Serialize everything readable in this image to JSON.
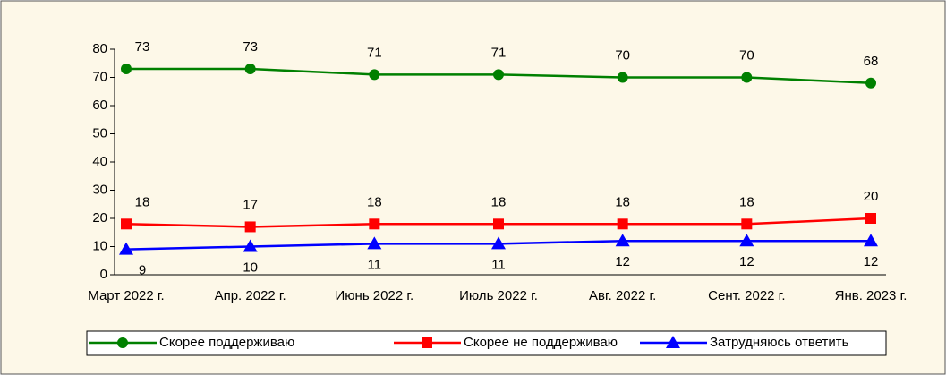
{
  "chart_data": {
    "type": "line",
    "categories": [
      "Март 2022 г.",
      "Апр. 2022 г.",
      "Июнь 2022 г.",
      "Июль 2022 г.",
      "Авг. 2022 г.",
      "Сент. 2022 г.",
      "Янв. 2023 г."
    ],
    "series": [
      {
        "name": "Скорее поддерживаю",
        "color": "#008000",
        "marker": "circle",
        "values": [
          73,
          73,
          71,
          71,
          70,
          70,
          68
        ]
      },
      {
        "name": "Скорее не поддерживаю",
        "color": "#ff0000",
        "marker": "square",
        "values": [
          18,
          17,
          18,
          18,
          18,
          18,
          20
        ]
      },
      {
        "name": "Затрудняюсь ответить",
        "color": "#0000ff",
        "marker": "triangle",
        "values": [
          9,
          10,
          11,
          11,
          12,
          12,
          12
        ]
      }
    ],
    "ylim": [
      0,
      80
    ],
    "yticks": [
      0,
      10,
      20,
      30,
      40,
      50,
      60,
      70,
      80
    ],
    "grid": false,
    "legend": "bottom"
  }
}
